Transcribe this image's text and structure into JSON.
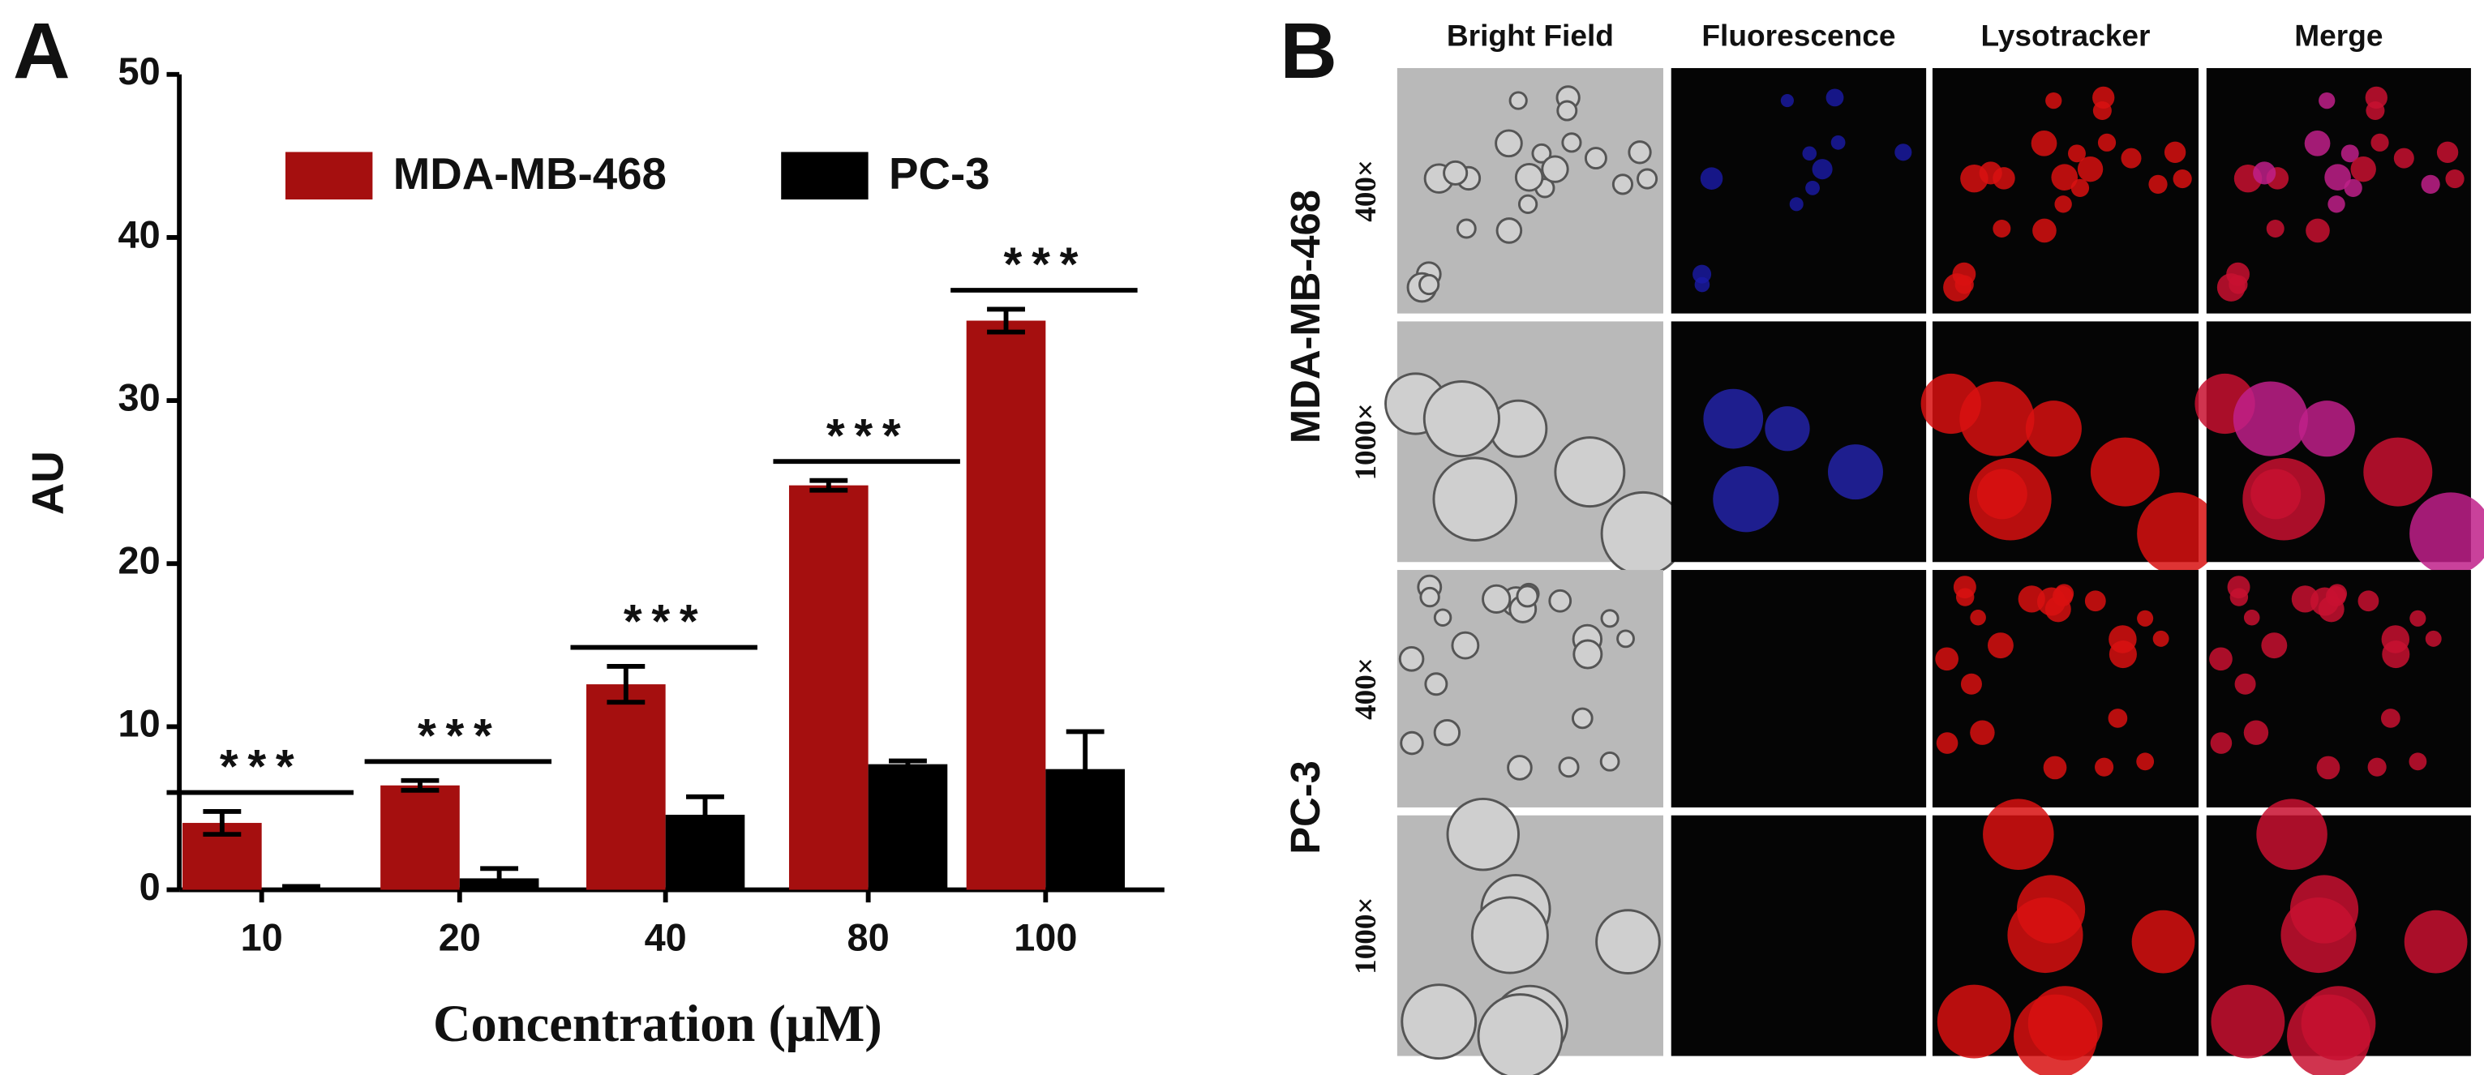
{
  "chart_data": {
    "type": "bar",
    "label": "A",
    "y_label": "AU",
    "x_label": "Concentration (μM)",
    "categories": [
      "10",
      "20",
      "40",
      "80",
      "100"
    ],
    "series": [
      {
        "name": "MDA-MB-468",
        "color": "#a50f0f",
        "values": [
          4.1,
          6.4,
          12.6,
          24.8,
          34.9
        ],
        "errors": [
          0.7,
          0.3,
          1.1,
          0.3,
          0.7
        ]
      },
      {
        "name": "PC-3",
        "color": "#000000",
        "values": [
          0.1,
          0.7,
          4.6,
          7.7,
          7.4
        ],
        "errors": [
          0.1,
          0.6,
          1.1,
          0.2,
          2.3
        ]
      }
    ],
    "significance": [
      "***",
      "***",
      "***",
      "***",
      "***"
    ],
    "ylim": [
      0,
      50
    ],
    "yticks": [
      0,
      10,
      20,
      30,
      40,
      50
    ],
    "legend": "top"
  },
  "panel_b": {
    "label": "B",
    "columns": [
      "Bright Field",
      "Fluorescence",
      "Lysotracker",
      "Merge"
    ],
    "groups": [
      "MDA-MB-468",
      "PC-3"
    ],
    "magnifications": [
      "400×",
      "1000×",
      "400×",
      "1000×"
    ]
  }
}
